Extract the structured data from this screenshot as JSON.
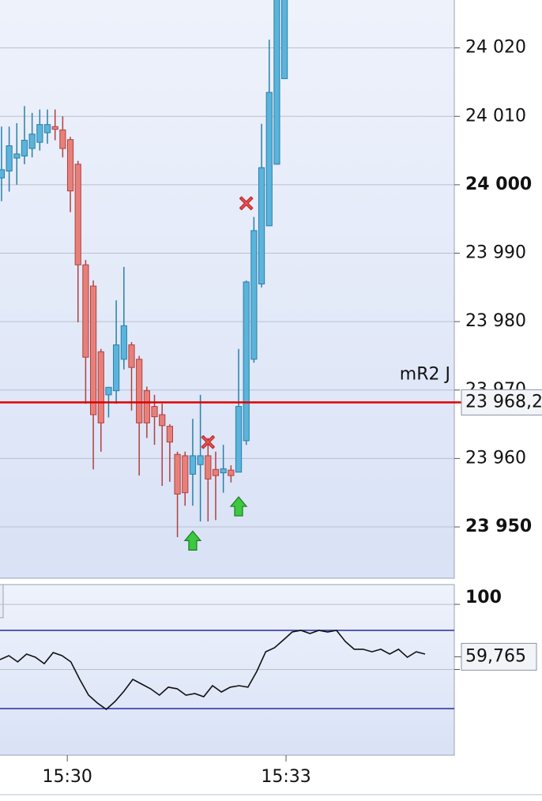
{
  "chart_data": [
    {
      "type": "candlestick",
      "open": [
        24001.0,
        24002.0,
        24003.9,
        24004.2,
        24005.3,
        24006.2,
        24007.6,
        24008.5,
        24008.0,
        24006.6,
        24003.0,
        23988.3,
        23985.2,
        23975.6,
        23969.3,
        23969.9,
        23974.5,
        23976.6,
        23974.5,
        23969.9,
        23967.6,
        23966.4,
        23964.7,
        23960.6,
        23960.4,
        23957.7,
        23959.1,
        23960.4,
        23958.4,
        23957.9,
        23958.3,
        23958.0,
        23962.6,
        23974.5,
        23985.5,
        23994.0,
        24003.0,
        24015.5
      ],
      "high": [
        24008.5,
        24008.5,
        24009.0,
        24011.5,
        24010.5,
        24011.0,
        24011.0,
        24011.0,
        24010.0,
        24007.0,
        24003.5,
        23989.0,
        23986.0,
        23976.0,
        23970.4,
        23983.1,
        23988.0,
        23977.0,
        23975.0,
        23970.5,
        23969.3,
        23968.0,
        23965.0,
        23961.0,
        23961.0,
        23965.8,
        23969.3,
        23963.0,
        23961.0,
        23962.0,
        23959.0,
        23976.0,
        23986.0,
        23995.3,
        24008.9,
        24021.2,
        24027.5,
        24030.0
      ],
      "low": [
        23997.6,
        23999.0,
        24000.0,
        24003.0,
        24004.0,
        24005.0,
        24006.0,
        24006.5,
        24004.0,
        23996.0,
        23979.9,
        23968.0,
        23958.4,
        23961.0,
        23966.0,
        23968.0,
        23973.0,
        23967.0,
        23957.5,
        23963.0,
        23962.0,
        23956.0,
        23956.6,
        23948.5,
        23953.1,
        23953.1,
        23950.8,
        23950.8,
        23951.0,
        23955.0,
        23956.5,
        23958.0,
        23962.0,
        23974.0,
        23985.0,
        23994.0,
        24003.0,
        24015.5
      ],
      "close": [
        24002.2,
        24005.7,
        24004.5,
        24006.5,
        24007.4,
        24008.8,
        24008.8,
        24008.1,
        24005.3,
        23999.1,
        23988.3,
        23974.8,
        23966.4,
        23965.2,
        23970.4,
        23976.6,
        23979.4,
        23973.3,
        23965.2,
        23965.2,
        23966.1,
        23964.8,
        23962.4,
        23954.8,
        23955.0,
        23960.4,
        23960.4,
        23957.0,
        23957.5,
        23958.5,
        23957.5,
        23967.6,
        23985.8,
        23993.3,
        24002.5,
        24013.5,
        24027.5,
        24030.0
      ],
      "up_color": "#5ab4dc",
      "up_edge": "#2a7fa8",
      "down_color": "#e8807a",
      "down_edge": "#b04040",
      "xlim": [
        -0.2,
        59.2
      ],
      "ylim": [
        23942.5,
        24027.0
      ],
      "yticks": [
        {
          "value": 24020,
          "label": "24 020"
        },
        {
          "value": 24010,
          "label": "24 010"
        },
        {
          "value": 24000,
          "label": "24 000"
        },
        {
          "value": 23990,
          "label": "23 990"
        },
        {
          "value": 23980,
          "label": "23 980"
        },
        {
          "value": 23970,
          "label": "23 970"
        },
        {
          "value": 23960,
          "label": "23 960"
        },
        {
          "value": 23950,
          "label": "23 950"
        }
      ],
      "bold_every": 50,
      "grid": true,
      "hlines": [
        {
          "name": "mR2 J",
          "value": 23968.2,
          "value_label": "23 968,2",
          "color": "#e00000"
        }
      ],
      "sell_signals": [
        {
          "x": 27,
          "y": 23962.4
        },
        {
          "x": 32,
          "y": 23997.3
        }
      ],
      "buy_signals": [
        {
          "x": 25,
          "y": 23948.0
        },
        {
          "x": 31,
          "y": 23953.0
        }
      ]
    },
    {
      "type": "line",
      "color": "#111111",
      "values": [
        57.6,
        60.6,
        55.8,
        61.8,
        59.4,
        54.5,
        63.0,
        60.6,
        55.8,
        42.4,
        30.3,
        24.2,
        19.4,
        25.5,
        33.3,
        42.4,
        38.8,
        35.2,
        30.3,
        36.4,
        35.2,
        30.3,
        31.5,
        29.1,
        37.6,
        32.7,
        36.4,
        37.6,
        36.4,
        48.5,
        63.6,
        66.7,
        72.7,
        78.8,
        80.0,
        77.6,
        80.0,
        78.8,
        80.0,
        71.5,
        65.5,
        65.5,
        63.6,
        65.5,
        61.8,
        65.5,
        59.4,
        63.6,
        61.8
      ],
      "last_value": {
        "value": 59.765,
        "label": "59,765"
      },
      "xlim": [
        0,
        51.3
      ],
      "xticks": [
        {
          "value": 7.6,
          "label": "15:30"
        },
        {
          "value": 32.3,
          "label": "15:33"
        }
      ],
      "ylim": [
        -15.8,
        115.2
      ],
      "yticks": [
        100,
        50
      ],
      "levels": [
        80,
        20
      ],
      "level_color": "#2a2aa0"
    }
  ]
}
